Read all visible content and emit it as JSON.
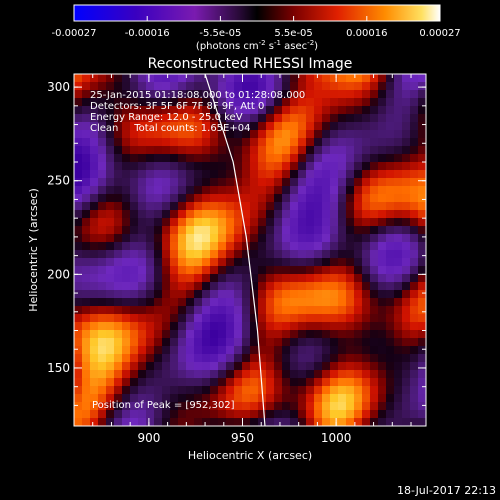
{
  "colorbar": {
    "ticks": [
      "-0.00027",
      "-0.00016",
      "-5.5e-05",
      "5.5e-05",
      "0.00016",
      "0.00027"
    ],
    "unit_main": "(photons cm",
    "unit_exp1": "-2",
    "unit_mid": " s",
    "unit_exp2": "-1",
    "unit_mid2": " asec",
    "unit_exp3": "-2",
    "unit_end": ")"
  },
  "chart_data": {
    "type": "heatmap",
    "title": "Reconstructed RHESSI Image",
    "xlabel": "Heliocentric X (arcsec)",
    "ylabel": "Heliocentric Y (arcsec)",
    "xlim": [
      860,
      1048
    ],
    "ylim": [
      119,
      307
    ],
    "x_ticks": [
      900,
      950,
      1000
    ],
    "y_ticks": [
      150,
      200,
      250,
      300
    ],
    "colorbar_range": [
      -0.00027,
      0.00027
    ],
    "annotations": [
      "25-Jan-2015 01:18:08.000 to 01:28:08.000",
      "Detectors: 3F 5F 6F 7F 8F 9F, Att 0",
      "Energy Range: 12.0 - 25.0 keV",
      "Clean     Total counts: 1.65E+04"
    ],
    "peak_label": "Position of Peak = [952,302]",
    "limb_curve": [
      [
        930,
        307
      ],
      [
        945,
        260
      ],
      [
        952,
        220
      ],
      [
        958,
        170
      ],
      [
        962,
        119
      ]
    ]
  },
  "footer": {
    "timestamp": "18-Jul-2017 22:13"
  }
}
